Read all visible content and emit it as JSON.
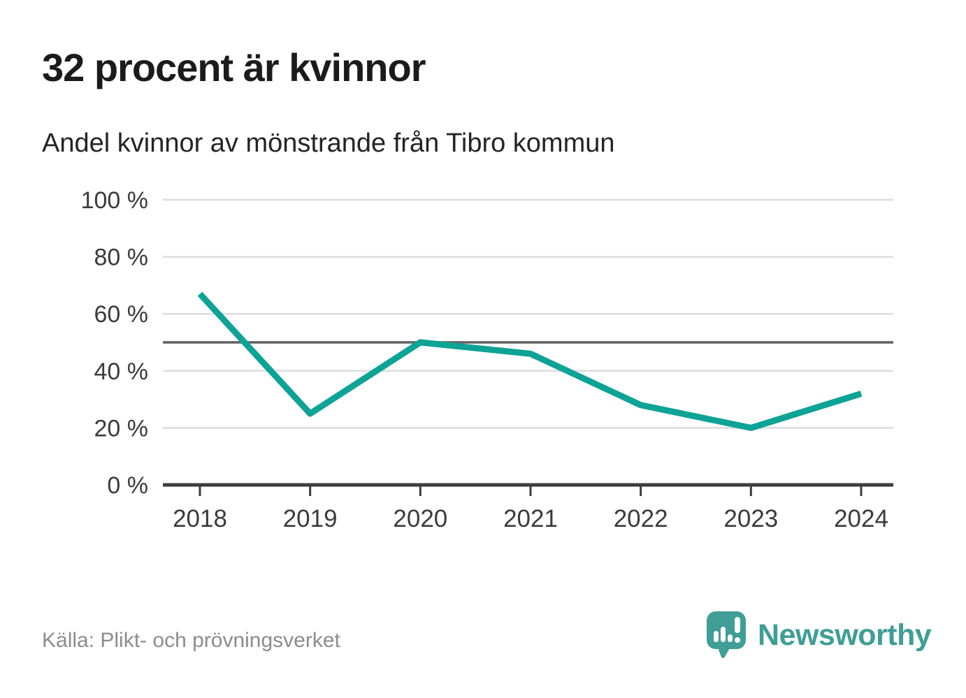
{
  "header": {
    "title": "32 procent är kvinnor",
    "subtitle": "Andel kvinnor av mönstrande från Tibro kommun"
  },
  "chart_data": {
    "type": "line",
    "title": "32 procent är kvinnor",
    "subtitle": "Andel kvinnor av mönstrande från Tibro kommun",
    "x": [
      "2018",
      "2019",
      "2020",
      "2021",
      "2022",
      "2023",
      "2024"
    ],
    "values": [
      67,
      25,
      50,
      46,
      28,
      20,
      32
    ],
    "series_name": "Andel kvinnor av mönstrande",
    "ylim": [
      0,
      100
    ],
    "yticks": [
      0,
      20,
      40,
      60,
      80,
      100
    ],
    "ytick_labels": [
      "0 %",
      "20 %",
      "40 %",
      "60 %",
      "80 %",
      "100 %"
    ],
    "reference_line_y": 50,
    "grid": "horizontal",
    "legend": "none",
    "line_color": "#0da396"
  },
  "footer": {
    "source": "Källa: Plikt- och prövningsverket"
  },
  "branding": {
    "name": "Newsworthy",
    "logo_color": "#3f9e96",
    "logo_icon": "speech-bubble-bar-chart-exclamation"
  },
  "colors": {
    "accent_teal": "#0da396",
    "brand_teal": "#3f9e96",
    "grid_light": "#dcdcdc",
    "reference_dark": "#606060",
    "axis_dark": "#3c3c3c",
    "text_dark": "#1b1b1b",
    "text_muted": "#8c8c8c"
  }
}
